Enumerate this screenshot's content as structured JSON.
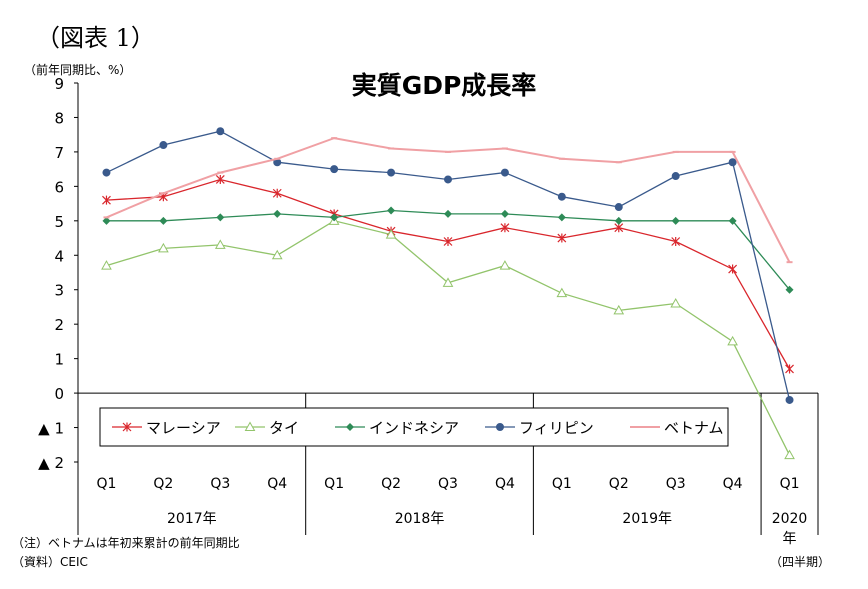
{
  "figure_label": "（図表 1）",
  "unit_label": "（前年同期比、%）",
  "notes": {
    "note": "（注）ベトナムは年初来累計の前年同期比",
    "source": "（資料）CEIC",
    "period": "（四半期）"
  },
  "chart_data": {
    "type": "line",
    "title": "実質GDP成長率",
    "ylabel": "（前年同期比、%）",
    "ylim": [
      -2,
      9
    ],
    "y_ticks": [
      9,
      8,
      7,
      6,
      5,
      4,
      3,
      2,
      1,
      0,
      -1,
      -2
    ],
    "y_tick_labels": [
      "9",
      "8",
      "7",
      "6",
      "5",
      "4",
      "3",
      "2",
      "1",
      "0",
      "▲ 1",
      "▲ 2"
    ],
    "categories": [
      "Q1",
      "Q2",
      "Q3",
      "Q4",
      "Q1",
      "Q2",
      "Q3",
      "Q4",
      "Q1",
      "Q2",
      "Q3",
      "Q4",
      "Q1"
    ],
    "year_groups": [
      {
        "label": "2017年",
        "span": [
          0,
          3
        ]
      },
      {
        "label": "2018年",
        "span": [
          4,
          7
        ]
      },
      {
        "label": "2019年",
        "span": [
          8,
          11
        ]
      },
      {
        "label": "2020\n年",
        "span": [
          12,
          12
        ]
      }
    ],
    "legend_position": "bottom-inside",
    "series": [
      {
        "name": "マレーシア",
        "color": "#d9262c",
        "marker": "star",
        "values": [
          5.6,
          5.7,
          6.2,
          5.8,
          5.2,
          4.7,
          4.4,
          4.8,
          4.5,
          4.8,
          4.4,
          3.6,
          0.7
        ]
      },
      {
        "name": "タイ",
        "color": "#92c46b",
        "marker": "triangle",
        "values": [
          3.7,
          4.2,
          4.3,
          4.0,
          5.0,
          4.6,
          3.2,
          3.7,
          2.9,
          2.4,
          2.6,
          1.5,
          -1.8
        ]
      },
      {
        "name": "インドネシア",
        "color": "#2e8b57",
        "marker": "diamond",
        "values": [
          5.0,
          5.0,
          5.1,
          5.2,
          5.1,
          5.3,
          5.2,
          5.2,
          5.1,
          5.0,
          5.0,
          5.0,
          3.0
        ]
      },
      {
        "name": "フィリピン",
        "color": "#3a5a8c",
        "marker": "circle",
        "values": [
          6.4,
          7.2,
          7.6,
          6.7,
          6.5,
          6.4,
          6.2,
          6.4,
          5.7,
          5.4,
          6.3,
          6.7,
          -0.2
        ]
      },
      {
        "name": "ベトナム",
        "color": "#f0a0a4",
        "marker": "dash",
        "values": [
          5.1,
          5.8,
          6.4,
          6.8,
          7.4,
          7.1,
          7.0,
          7.1,
          6.8,
          6.7,
          7.0,
          7.0,
          3.8
        ]
      }
    ]
  }
}
